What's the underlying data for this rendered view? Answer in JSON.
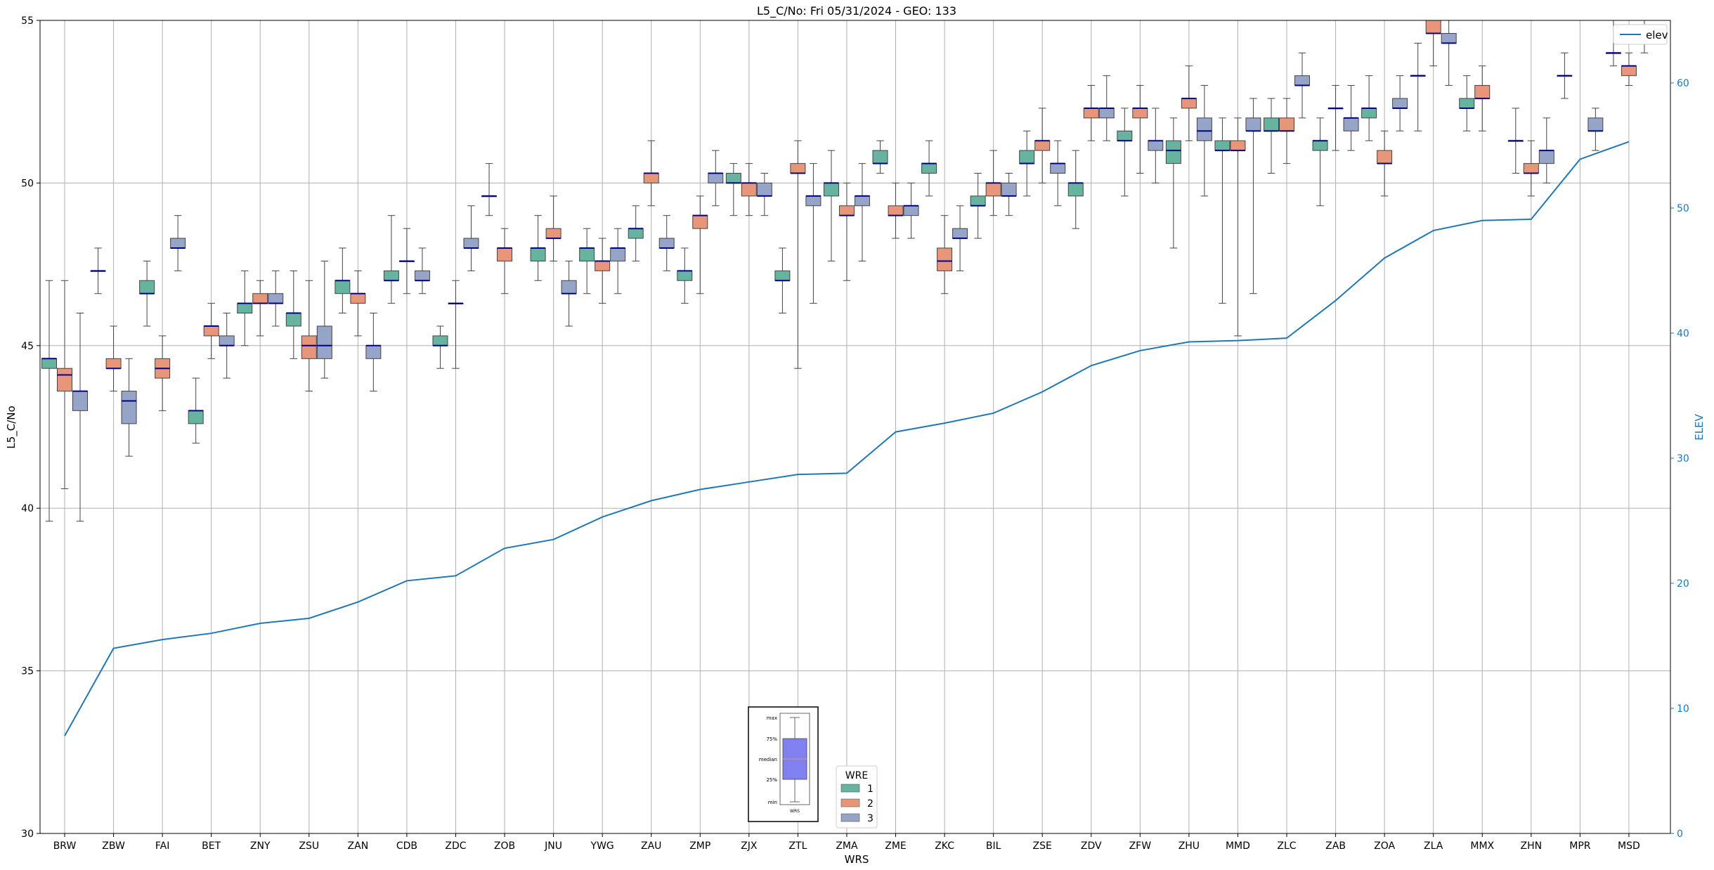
{
  "chart_data": {
    "type": "box",
    "title": "L5_C/No: Fri 05/31/2024 - GEO: 133",
    "xlabel": "WRS",
    "ylabel": "L5_C/No",
    "y2label": "ELEV",
    "ylim": [
      30,
      55
    ],
    "y2lim": [
      0,
      65
    ],
    "yticks": [
      30,
      35,
      40,
      45,
      50,
      55
    ],
    "y2ticks": [
      0,
      10,
      20,
      30,
      40,
      50,
      60
    ],
    "grid": true,
    "categories": [
      "BRW",
      "ZBW",
      "FAI",
      "BET",
      "ZNY",
      "ZSU",
      "ZAN",
      "CDB",
      "ZDC",
      "ZOB",
      "JNU",
      "YWG",
      "ZAU",
      "ZMP",
      "ZJX",
      "ZTL",
      "ZMA",
      "ZME",
      "ZKC",
      "BIL",
      "ZSE",
      "ZDV",
      "ZFW",
      "ZHU",
      "MMD",
      "ZLC",
      "ZAB",
      "ZOA",
      "ZLA",
      "MMX",
      "ZHN",
      "MPR",
      "MSD"
    ],
    "wre_colors": {
      "1": "#66b3a0",
      "2": "#e8967a",
      "3": "#96a4c8"
    },
    "boxes": [
      {
        "cat": "BRW",
        "wre": 1,
        "min": 39.6,
        "q1": 44.3,
        "med": 44.6,
        "q3": 44.6,
        "max": 47.0
      },
      {
        "cat": "BRW",
        "wre": 2,
        "min": 40.6,
        "q1": 43.6,
        "med": 44.1,
        "q3": 44.3,
        "max": 47.0
      },
      {
        "cat": "BRW",
        "wre": 3,
        "min": 39.6,
        "q1": 43.0,
        "med": 43.6,
        "q3": 43.6,
        "max": 46.0
      },
      {
        "cat": "ZBW",
        "wre": 1,
        "min": 46.6,
        "q1": 47.3,
        "med": 47.3,
        "q3": 47.3,
        "max": 48.0
      },
      {
        "cat": "ZBW",
        "wre": 2,
        "min": 43.6,
        "q1": 44.3,
        "med": 44.3,
        "q3": 44.6,
        "max": 45.6
      },
      {
        "cat": "ZBW",
        "wre": 3,
        "min": 41.6,
        "q1": 42.6,
        "med": 43.3,
        "q3": 43.6,
        "max": 44.6
      },
      {
        "cat": "FAI",
        "wre": 1,
        "min": 45.6,
        "q1": 46.6,
        "med": 46.6,
        "q3": 47.0,
        "max": 47.6
      },
      {
        "cat": "FAI",
        "wre": 2,
        "min": 43.0,
        "q1": 44.0,
        "med": 44.3,
        "q3": 44.6,
        "max": 45.3
      },
      {
        "cat": "FAI",
        "wre": 3,
        "min": 47.3,
        "q1": 48.0,
        "med": 48.0,
        "q3": 48.3,
        "max": 49.0
      },
      {
        "cat": "BET",
        "wre": 1,
        "min": 42.0,
        "q1": 42.6,
        "med": 43.0,
        "q3": 43.0,
        "max": 44.0
      },
      {
        "cat": "BET",
        "wre": 2,
        "min": 44.6,
        "q1": 45.3,
        "med": 45.6,
        "q3": 45.6,
        "max": 46.3
      },
      {
        "cat": "BET",
        "wre": 3,
        "min": 44.0,
        "q1": 45.0,
        "med": 45.0,
        "q3": 45.3,
        "max": 46.0
      },
      {
        "cat": "ZNY",
        "wre": 1,
        "min": 45.0,
        "q1": 46.0,
        "med": 46.3,
        "q3": 46.3,
        "max": 47.3
      },
      {
        "cat": "ZNY",
        "wre": 2,
        "min": 45.3,
        "q1": 46.3,
        "med": 46.3,
        "q3": 46.6,
        "max": 47.0
      },
      {
        "cat": "ZNY",
        "wre": 3,
        "min": 45.6,
        "q1": 46.3,
        "med": 46.3,
        "q3": 46.6,
        "max": 47.3
      },
      {
        "cat": "ZSU",
        "wre": 1,
        "min": 44.6,
        "q1": 45.6,
        "med": 46.0,
        "q3": 46.0,
        "max": 47.3
      },
      {
        "cat": "ZSU",
        "wre": 2,
        "min": 43.6,
        "q1": 44.6,
        "med": 45.0,
        "q3": 45.3,
        "max": 47.0
      },
      {
        "cat": "ZSU",
        "wre": 3,
        "min": 44.0,
        "q1": 44.6,
        "med": 45.0,
        "q3": 45.6,
        "max": 47.6
      },
      {
        "cat": "ZAN",
        "wre": 1,
        "min": 46.0,
        "q1": 46.6,
        "med": 47.0,
        "q3": 47.0,
        "max": 48.0
      },
      {
        "cat": "ZAN",
        "wre": 2,
        "min": 45.3,
        "q1": 46.3,
        "med": 46.6,
        "q3": 46.6,
        "max": 47.3
      },
      {
        "cat": "ZAN",
        "wre": 3,
        "min": 43.6,
        "q1": 44.6,
        "med": 45.0,
        "q3": 45.0,
        "max": 46.0
      },
      {
        "cat": "CDB",
        "wre": 1,
        "min": 46.3,
        "q1": 47.0,
        "med": 47.0,
        "q3": 47.3,
        "max": 49.0
      },
      {
        "cat": "CDB",
        "wre": 2,
        "min": 46.6,
        "q1": 47.6,
        "med": 47.6,
        "q3": 47.6,
        "max": 48.6
      },
      {
        "cat": "CDB",
        "wre": 3,
        "min": 46.6,
        "q1": 47.0,
        "med": 47.0,
        "q3": 47.3,
        "max": 48.0
      },
      {
        "cat": "ZDC",
        "wre": 1,
        "min": 44.3,
        "q1": 45.0,
        "med": 45.0,
        "q3": 45.3,
        "max": 45.6
      },
      {
        "cat": "ZDC",
        "wre": 2,
        "min": 44.3,
        "q1": 46.3,
        "med": 46.3,
        "q3": 46.3,
        "max": 47.0
      },
      {
        "cat": "ZDC",
        "wre": 3,
        "min": 47.3,
        "q1": 48.0,
        "med": 48.0,
        "q3": 48.3,
        "max": 49.3
      },
      {
        "cat": "ZOB",
        "wre": 1,
        "min": 49.0,
        "q1": 49.6,
        "med": 49.6,
        "q3": 49.6,
        "max": 50.6
      },
      {
        "cat": "ZOB",
        "wre": 2,
        "min": 46.6,
        "q1": 47.6,
        "med": 48.0,
        "q3": 48.0,
        "max": 48.6
      },
      {
        "cat": "ZOB",
        "wre": 3,
        "min": null,
        "q1": null,
        "med": null,
        "q3": null,
        "max": null
      },
      {
        "cat": "JNU",
        "wre": 1,
        "min": 47.0,
        "q1": 47.6,
        "med": 48.0,
        "q3": 48.0,
        "max": 49.0
      },
      {
        "cat": "JNU",
        "wre": 2,
        "min": 47.6,
        "q1": 48.3,
        "med": 48.3,
        "q3": 48.6,
        "max": 49.6
      },
      {
        "cat": "JNU",
        "wre": 3,
        "min": 45.6,
        "q1": 46.6,
        "med": 46.6,
        "q3": 47.0,
        "max": 47.6
      },
      {
        "cat": "YWG",
        "wre": 1,
        "min": 46.6,
        "q1": 47.6,
        "med": 48.0,
        "q3": 48.0,
        "max": 48.6
      },
      {
        "cat": "YWG",
        "wre": 2,
        "min": 46.3,
        "q1": 47.3,
        "med": 47.6,
        "q3": 47.6,
        "max": 48.3
      },
      {
        "cat": "YWG",
        "wre": 3,
        "min": 46.6,
        "q1": 47.6,
        "med": 48.0,
        "q3": 48.0,
        "max": 48.6
      },
      {
        "cat": "ZAU",
        "wre": 1,
        "min": 47.6,
        "q1": 48.3,
        "med": 48.6,
        "q3": 48.6,
        "max": 49.3
      },
      {
        "cat": "ZAU",
        "wre": 2,
        "min": 49.3,
        "q1": 50.0,
        "med": 50.3,
        "q3": 50.3,
        "max": 51.3
      },
      {
        "cat": "ZAU",
        "wre": 3,
        "min": 47.3,
        "q1": 48.0,
        "med": 48.0,
        "q3": 48.3,
        "max": 49.0
      },
      {
        "cat": "ZMP",
        "wre": 1,
        "min": 46.3,
        "q1": 47.0,
        "med": 47.3,
        "q3": 47.3,
        "max": 48.0
      },
      {
        "cat": "ZMP",
        "wre": 2,
        "min": 46.6,
        "q1": 48.6,
        "med": 49.0,
        "q3": 49.0,
        "max": 49.6
      },
      {
        "cat": "ZMP",
        "wre": 3,
        "min": 49.3,
        "q1": 50.0,
        "med": 50.3,
        "q3": 50.3,
        "max": 51.0
      },
      {
        "cat": "ZJX",
        "wre": 1,
        "min": 49.0,
        "q1": 50.0,
        "med": 50.0,
        "q3": 50.3,
        "max": 50.6
      },
      {
        "cat": "ZJX",
        "wre": 2,
        "min": 49.0,
        "q1": 49.6,
        "med": 50.0,
        "q3": 50.0,
        "max": 50.6
      },
      {
        "cat": "ZJX",
        "wre": 3,
        "min": 49.0,
        "q1": 49.6,
        "med": 49.6,
        "q3": 50.0,
        "max": 50.3
      },
      {
        "cat": "ZTL",
        "wre": 1,
        "min": 46.0,
        "q1": 47.0,
        "med": 47.0,
        "q3": 47.3,
        "max": 48.0
      },
      {
        "cat": "ZTL",
        "wre": 2,
        "min": 44.3,
        "q1": 50.3,
        "med": 50.3,
        "q3": 50.6,
        "max": 51.3
      },
      {
        "cat": "ZTL",
        "wre": 3,
        "min": 46.3,
        "q1": 49.3,
        "med": 49.6,
        "q3": 49.6,
        "max": 50.6
      },
      {
        "cat": "ZMA",
        "wre": 1,
        "min": 47.6,
        "q1": 49.6,
        "med": 50.0,
        "q3": 50.0,
        "max": 51.0
      },
      {
        "cat": "ZMA",
        "wre": 2,
        "min": 47.0,
        "q1": 49.0,
        "med": 49.0,
        "q3": 49.3,
        "max": 50.0
      },
      {
        "cat": "ZMA",
        "wre": 3,
        "min": 47.6,
        "q1": 49.3,
        "med": 49.6,
        "q3": 49.6,
        "max": 50.6
      },
      {
        "cat": "ZME",
        "wre": 1,
        "min": 50.3,
        "q1": 50.6,
        "med": 50.6,
        "q3": 51.0,
        "max": 51.3
      },
      {
        "cat": "ZME",
        "wre": 2,
        "min": 48.3,
        "q1": 49.0,
        "med": 49.0,
        "q3": 49.3,
        "max": 50.0
      },
      {
        "cat": "ZME",
        "wre": 3,
        "min": 48.3,
        "q1": 49.0,
        "med": 49.3,
        "q3": 49.3,
        "max": 50.0
      },
      {
        "cat": "ZKC",
        "wre": 1,
        "min": 49.6,
        "q1": 50.3,
        "med": 50.6,
        "q3": 50.6,
        "max": 51.3
      },
      {
        "cat": "ZKC",
        "wre": 2,
        "min": 46.6,
        "q1": 47.3,
        "med": 47.6,
        "q3": 48.0,
        "max": 49.0
      },
      {
        "cat": "ZKC",
        "wre": 3,
        "min": 47.3,
        "q1": 48.3,
        "med": 48.3,
        "q3": 48.6,
        "max": 49.3
      },
      {
        "cat": "BIL",
        "wre": 1,
        "min": 48.3,
        "q1": 49.3,
        "med": 49.3,
        "q3": 49.6,
        "max": 50.3
      },
      {
        "cat": "BIL",
        "wre": 2,
        "min": 49.0,
        "q1": 49.6,
        "med": 50.0,
        "q3": 50.0,
        "max": 51.0
      },
      {
        "cat": "BIL",
        "wre": 3,
        "min": 49.0,
        "q1": 49.6,
        "med": 49.6,
        "q3": 50.0,
        "max": 50.3
      },
      {
        "cat": "ZSE",
        "wre": 1,
        "min": 49.6,
        "q1": 50.6,
        "med": 50.6,
        "q3": 51.0,
        "max": 51.6
      },
      {
        "cat": "ZSE",
        "wre": 2,
        "min": 50.0,
        "q1": 51.0,
        "med": 51.3,
        "q3": 51.3,
        "max": 52.3
      },
      {
        "cat": "ZSE",
        "wre": 3,
        "min": 49.3,
        "q1": 50.3,
        "med": 50.6,
        "q3": 50.6,
        "max": 51.3
      },
      {
        "cat": "ZDV",
        "wre": 1,
        "min": 48.6,
        "q1": 49.6,
        "med": 50.0,
        "q3": 50.0,
        "max": 51.0
      },
      {
        "cat": "ZDV",
        "wre": 2,
        "min": 51.3,
        "q1": 52.0,
        "med": 52.3,
        "q3": 52.3,
        "max": 53.0
      },
      {
        "cat": "ZDV",
        "wre": 3,
        "min": 51.3,
        "q1": 52.0,
        "med": 52.3,
        "q3": 52.3,
        "max": 53.3
      },
      {
        "cat": "ZFW",
        "wre": 1,
        "min": 49.6,
        "q1": 51.3,
        "med": 51.3,
        "q3": 51.6,
        "max": 52.3
      },
      {
        "cat": "ZFW",
        "wre": 2,
        "min": 50.3,
        "q1": 52.0,
        "med": 52.3,
        "q3": 52.3,
        "max": 53.0
      },
      {
        "cat": "ZFW",
        "wre": 3,
        "min": 50.0,
        "q1": 51.0,
        "med": 51.3,
        "q3": 51.3,
        "max": 52.3
      },
      {
        "cat": "ZHU",
        "wre": 1,
        "min": 48.0,
        "q1": 50.6,
        "med": 51.0,
        "q3": 51.3,
        "max": 52.0
      },
      {
        "cat": "ZHU",
        "wre": 2,
        "min": 51.3,
        "q1": 52.3,
        "med": 52.6,
        "q3": 52.6,
        "max": 53.6
      },
      {
        "cat": "ZHU",
        "wre": 3,
        "min": 49.6,
        "q1": 51.3,
        "med": 51.6,
        "q3": 52.0,
        "max": 53.0
      },
      {
        "cat": "MMD",
        "wre": 1,
        "min": 46.3,
        "q1": 51.0,
        "med": 51.0,
        "q3": 51.3,
        "max": 52.0
      },
      {
        "cat": "MMD",
        "wre": 2,
        "min": 45.3,
        "q1": 51.0,
        "med": 51.0,
        "q3": 51.3,
        "max": 52.0
      },
      {
        "cat": "MMD",
        "wre": 3,
        "min": 46.6,
        "q1": 51.6,
        "med": 51.6,
        "q3": 52.0,
        "max": 52.6
      },
      {
        "cat": "ZLC",
        "wre": 1,
        "min": 50.3,
        "q1": 51.6,
        "med": 51.6,
        "q3": 52.0,
        "max": 52.6
      },
      {
        "cat": "ZLC",
        "wre": 2,
        "min": 50.6,
        "q1": 51.6,
        "med": 51.6,
        "q3": 52.0,
        "max": 52.6
      },
      {
        "cat": "ZLC",
        "wre": 3,
        "min": 52.0,
        "q1": 53.0,
        "med": 53.0,
        "q3": 53.3,
        "max": 54.0
      },
      {
        "cat": "ZAB",
        "wre": 1,
        "min": 49.3,
        "q1": 51.0,
        "med": 51.3,
        "q3": 51.3,
        "max": 52.0
      },
      {
        "cat": "ZAB",
        "wre": 2,
        "min": 51.0,
        "q1": 52.3,
        "med": 52.3,
        "q3": 52.3,
        "max": 53.0
      },
      {
        "cat": "ZAB",
        "wre": 3,
        "min": 51.0,
        "q1": 51.6,
        "med": 52.0,
        "q3": 52.0,
        "max": 53.0
      },
      {
        "cat": "ZOA",
        "wre": 1,
        "min": 51.3,
        "q1": 52.0,
        "med": 52.3,
        "q3": 52.3,
        "max": 53.3
      },
      {
        "cat": "ZOA",
        "wre": 2,
        "min": 49.6,
        "q1": 50.6,
        "med": 50.6,
        "q3": 51.0,
        "max": 51.6
      },
      {
        "cat": "ZOA",
        "wre": 3,
        "min": 51.6,
        "q1": 52.3,
        "med": 52.3,
        "q3": 52.6,
        "max": 53.3
      },
      {
        "cat": "ZLA",
        "wre": 1,
        "min": 51.6,
        "q1": 53.3,
        "med": 53.3,
        "q3": 53.3,
        "max": 54.3
      },
      {
        "cat": "ZLA",
        "wre": 2,
        "min": 53.6,
        "q1": 54.6,
        "med": 54.6,
        "q3": 55.0,
        "max": 55.0
      },
      {
        "cat": "ZLA",
        "wre": 3,
        "min": 53.0,
        "q1": 54.3,
        "med": 54.3,
        "q3": 54.6,
        "max": 55.0
      },
      {
        "cat": "MMX",
        "wre": 1,
        "min": 51.6,
        "q1": 52.3,
        "med": 52.3,
        "q3": 52.6,
        "max": 53.3
      },
      {
        "cat": "MMX",
        "wre": 2,
        "min": 51.6,
        "q1": 52.6,
        "med": 52.6,
        "q3": 53.0,
        "max": 53.6
      },
      {
        "cat": "MMX",
        "wre": 3,
        "min": null,
        "q1": null,
        "med": null,
        "q3": null,
        "max": null
      },
      {
        "cat": "ZHN",
        "wre": 1,
        "min": 50.3,
        "q1": 51.3,
        "med": 51.3,
        "q3": 51.3,
        "max": 52.3
      },
      {
        "cat": "ZHN",
        "wre": 2,
        "min": 49.6,
        "q1": 50.3,
        "med": 50.3,
        "q3": 50.6,
        "max": 51.3
      },
      {
        "cat": "ZHN",
        "wre": 3,
        "min": 50.0,
        "q1": 50.6,
        "med": 51.0,
        "q3": 51.0,
        "max": 52.0
      },
      {
        "cat": "MPR",
        "wre": 1,
        "min": 52.6,
        "q1": 53.3,
        "med": 53.3,
        "q3": 53.3,
        "max": 54.0
      },
      {
        "cat": "MPR",
        "wre": 2,
        "min": null,
        "q1": null,
        "med": null,
        "q3": null,
        "max": null
      },
      {
        "cat": "MPR",
        "wre": 3,
        "min": 51.0,
        "q1": 51.6,
        "med": 51.6,
        "q3": 52.0,
        "max": 52.3
      },
      {
        "cat": "MSD",
        "wre": 1,
        "min": 53.6,
        "q1": 54.0,
        "med": 54.0,
        "q3": 54.0,
        "max": 55.0
      },
      {
        "cat": "MSD",
        "wre": 2,
        "min": 53.0,
        "q1": 53.3,
        "med": 53.6,
        "q3": 53.6,
        "max": 54.0
      },
      {
        "cat": "MSD",
        "wre": 3,
        "min": 54.0,
        "q1": 54.3,
        "med": 54.3,
        "q3": 54.6,
        "max": 55.0
      }
    ],
    "elev": [
      7.8,
      14.8,
      15.5,
      16.0,
      16.8,
      17.2,
      18.5,
      20.2,
      20.6,
      22.8,
      23.5,
      25.3,
      26.6,
      27.5,
      28.1,
      28.7,
      28.8,
      32.1,
      32.8,
      33.6,
      35.3,
      37.4,
      38.6,
      39.3,
      39.4,
      39.6,
      42.6,
      46.0,
      48.2,
      49.0,
      49.1,
      53.9,
      55.3
    ],
    "legend": {
      "series": "elev",
      "wre_title": "WRE",
      "wre_entries": [
        "1",
        "2",
        "3"
      ],
      "position": "upper-right"
    },
    "key": {
      "labels": [
        "max",
        "75%",
        "median",
        "25%",
        "min"
      ],
      "xlabel": "WRS"
    }
  }
}
